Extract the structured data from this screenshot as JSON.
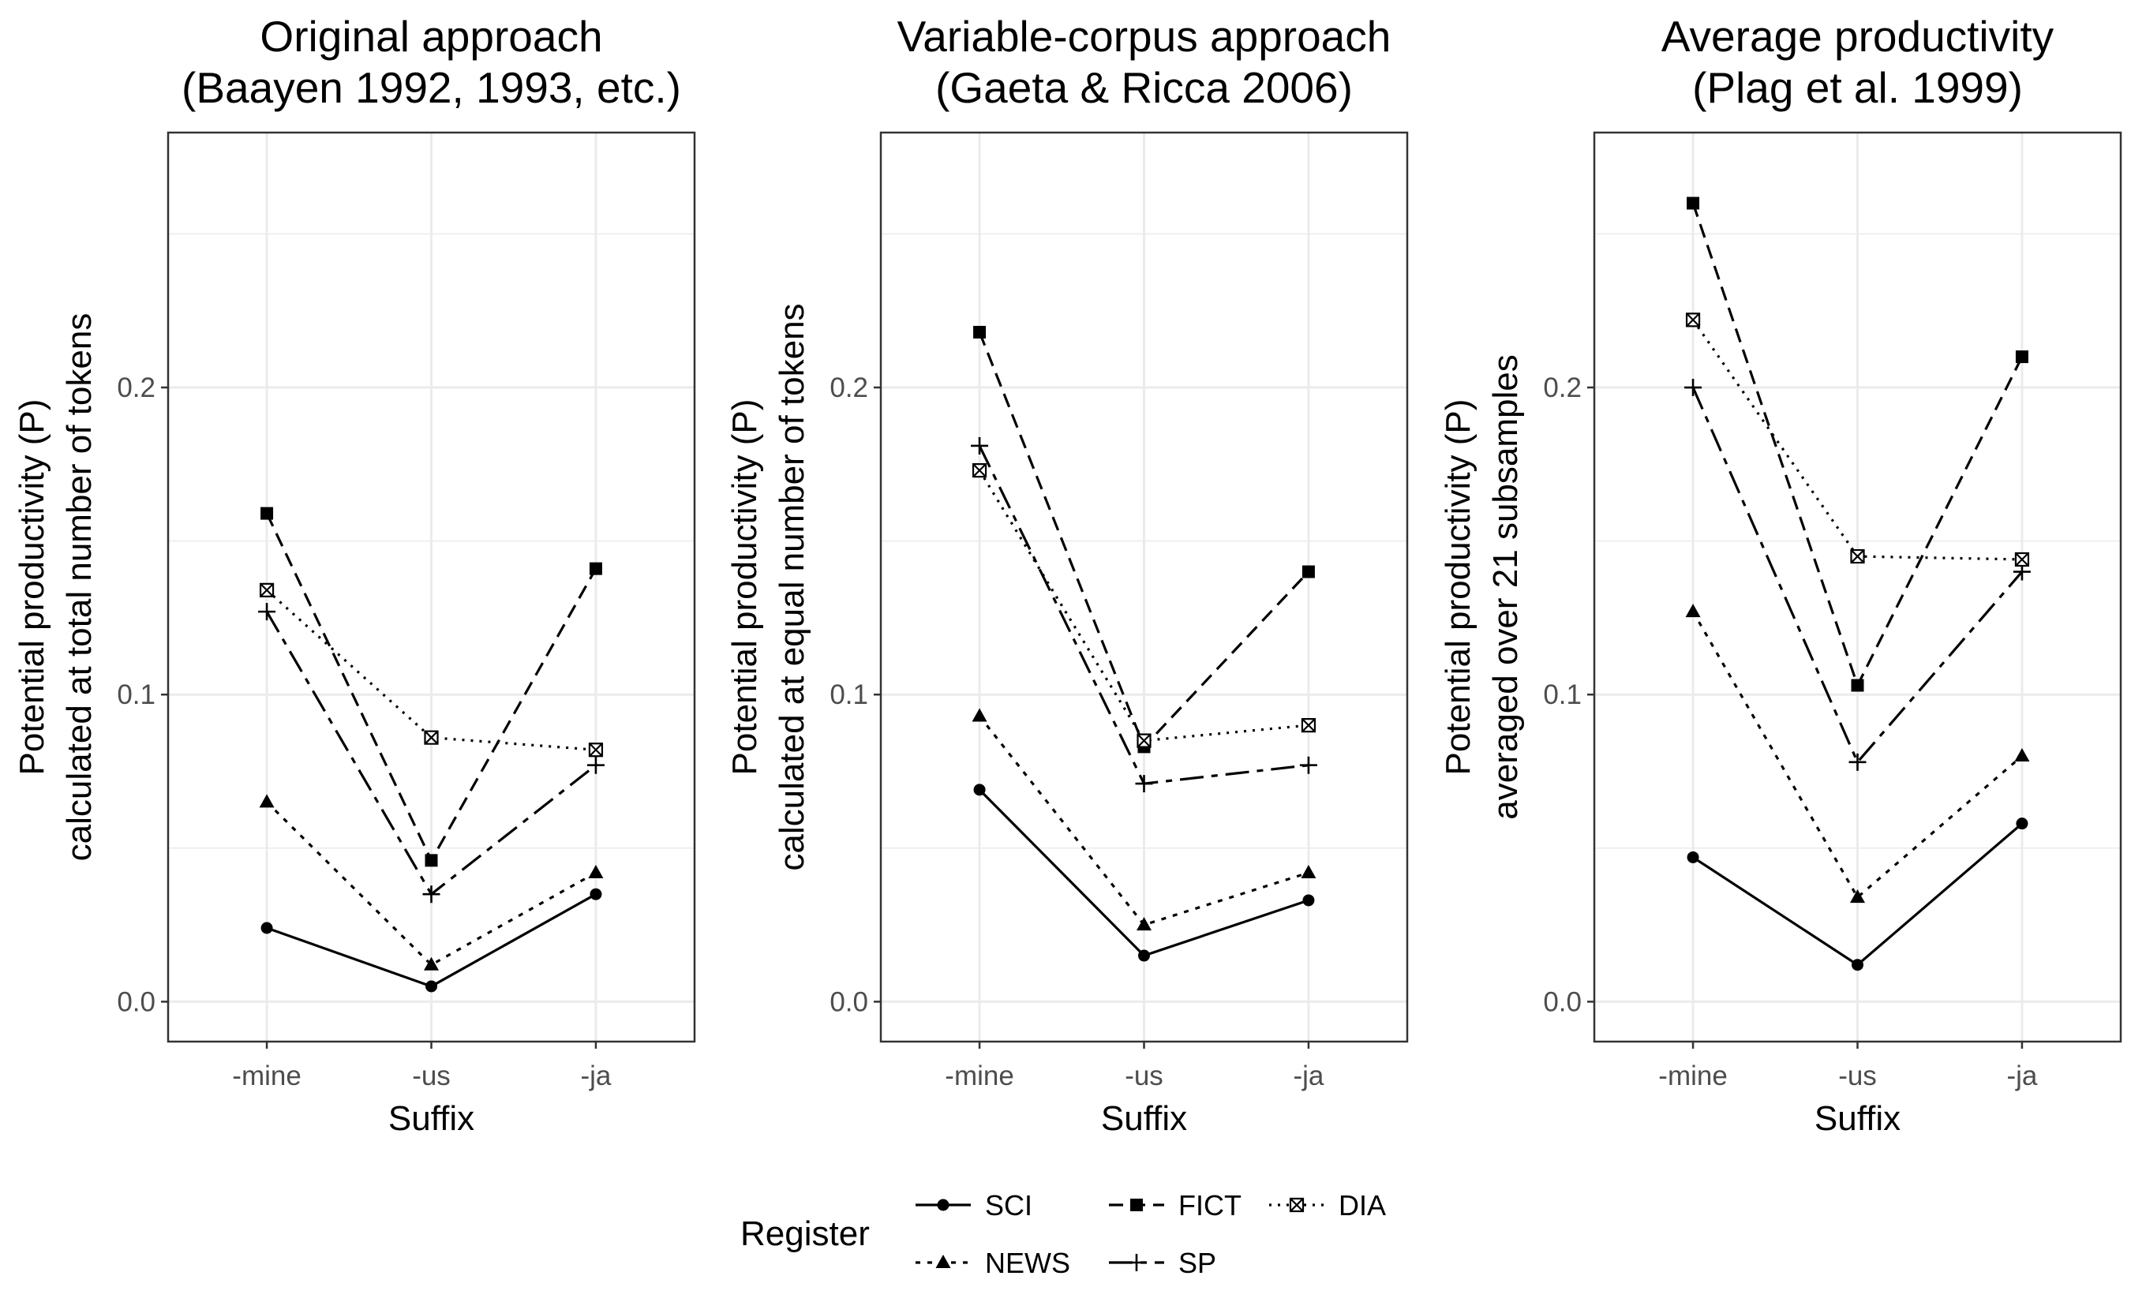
{
  "legend": {
    "title": "Register",
    "entries": [
      "SCI",
      "FICT",
      "DIA",
      "NEWS",
      "SP"
    ]
  },
  "colors": {
    "ink": "#000000",
    "grid": "#ebebeb",
    "tick_text": "#4d4d4d"
  },
  "chart_data": [
    {
      "type": "line",
      "title": [
        "Original approach",
        "(Baayen 1992, 1993, etc.)"
      ],
      "xlabel": "Suffix",
      "ylabel": [
        "Potential productivity (P)",
        "calculated at total number of tokens"
      ],
      "categories": [
        "-mine",
        "-us",
        "-ja"
      ],
      "ylim": [
        -0.013,
        0.283
      ],
      "yticks": [
        0.0,
        0.1,
        0.2
      ],
      "ytick_labels": [
        "0.0",
        "0.1",
        "0.2"
      ],
      "grid": true,
      "series": [
        {
          "name": "SCI",
          "values": [
            0.024,
            0.005,
            0.035
          ]
        },
        {
          "name": "NEWS",
          "values": [
            0.065,
            0.012,
            0.042
          ]
        },
        {
          "name": "FICT",
          "values": [
            0.159,
            0.046,
            0.141
          ]
        },
        {
          "name": "SP",
          "values": [
            0.127,
            0.035,
            0.077
          ]
        },
        {
          "name": "DIA",
          "values": [
            0.134,
            0.086,
            0.082
          ]
        }
      ]
    },
    {
      "type": "line",
      "title": [
        "Variable-corpus approach",
        "(Gaeta & Ricca 2006)"
      ],
      "xlabel": "Suffix",
      "ylabel": [
        "Potential productivity (P)",
        "calculated at equal number of tokens"
      ],
      "categories": [
        "-mine",
        "-us",
        "-ja"
      ],
      "ylim": [
        -0.013,
        0.283
      ],
      "yticks": [
        0.0,
        0.1,
        0.2
      ],
      "ytick_labels": [
        "0.0",
        "0.1",
        "0.2"
      ],
      "grid": true,
      "series": [
        {
          "name": "SCI",
          "values": [
            0.069,
            0.015,
            0.033
          ]
        },
        {
          "name": "NEWS",
          "values": [
            0.093,
            0.025,
            0.042
          ]
        },
        {
          "name": "FICT",
          "values": [
            0.218,
            0.083,
            0.14
          ]
        },
        {
          "name": "SP",
          "values": [
            0.181,
            0.071,
            0.077
          ]
        },
        {
          "name": "DIA",
          "values": [
            0.173,
            0.085,
            0.09
          ]
        }
      ]
    },
    {
      "type": "line",
      "title": [
        "Average productivity",
        "(Plag et al. 1999)"
      ],
      "xlabel": "Suffix",
      "ylabel": [
        "Potential productivity (P)",
        "averaged over 21 subsamples"
      ],
      "categories": [
        "-mine",
        "-us",
        "-ja"
      ],
      "ylim": [
        -0.013,
        0.283
      ],
      "yticks": [
        0.0,
        0.1,
        0.2
      ],
      "ytick_labels": [
        "0.0",
        "0.1",
        "0.2"
      ],
      "grid": true,
      "series": [
        {
          "name": "SCI",
          "values": [
            0.047,
            0.012,
            0.058
          ]
        },
        {
          "name": "NEWS",
          "values": [
            0.127,
            0.034,
            0.08
          ]
        },
        {
          "name": "FICT",
          "values": [
            0.26,
            0.103,
            0.21
          ]
        },
        {
          "name": "SP",
          "values": [
            0.2,
            0.078,
            0.14
          ]
        },
        {
          "name": "DIA",
          "values": [
            0.222,
            0.145,
            0.144
          ]
        }
      ]
    }
  ]
}
